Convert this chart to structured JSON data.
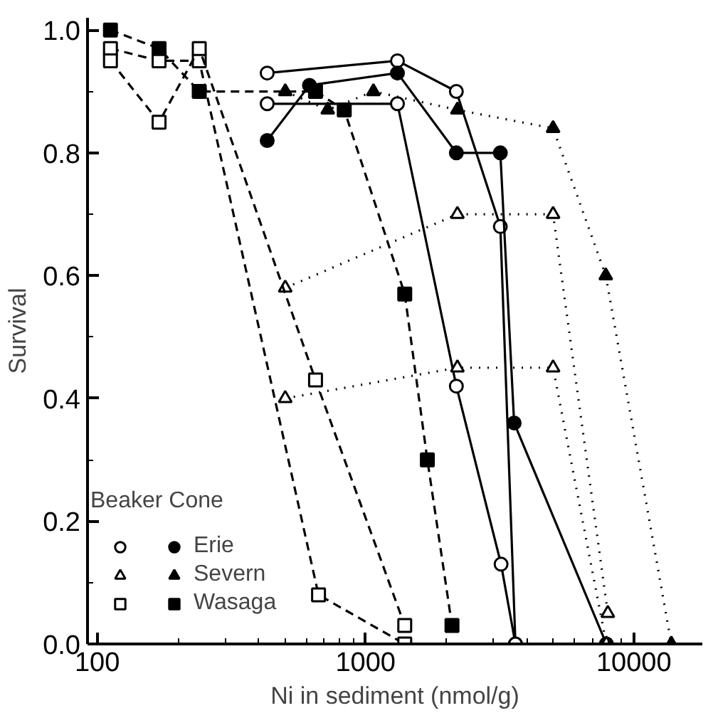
{
  "chart_data": {
    "type": "line",
    "xlabel": "Ni in sediment (nmol/g)",
    "ylabel": "Survival",
    "legend_title": "Beaker Cone",
    "log": "x",
    "xlim": [
      92,
      18000
    ],
    "ylim": [
      0,
      1.02
    ],
    "xticks": [
      100,
      1000,
      10000
    ],
    "yticks": [
      {
        "value": 0,
        "label": "0.0"
      },
      0.2,
      0.4,
      0.6,
      0.8,
      {
        "value": 1,
        "label": "1.0"
      }
    ],
    "grid": false,
    "legend": "bottom left",
    "series": [
      {
        "marker": "circle_open",
        "line_style": "solid",
        "color": "#000000",
        "x": [
          430,
          1315,
          2180,
          3180,
          3620
        ],
        "values": [
          0.93,
          0.95,
          0.9,
          0.68,
          0
        ]
      },
      {
        "marker": "circle_open",
        "line_style": "solid",
        "color": "#000000",
        "x": [
          430,
          1315,
          2180,
          3200,
          3620
        ],
        "values": [
          0.88,
          0.88,
          0.42,
          0.13,
          0
        ]
      },
      {
        "name": "Erie",
        "marker": "circle",
        "line_style": "solid",
        "color": "#000000",
        "x": [
          430,
          618,
          1315,
          2180,
          3180,
          3580,
          7900
        ],
        "values": [
          0.82,
          0.91,
          0.93,
          0.8,
          0.8,
          0.36,
          0
        ]
      },
      {
        "marker": "triangle_open",
        "line_style": "dotted",
        "color": "#000000",
        "x": [
          502,
          2200,
          5000,
          8000
        ],
        "values": [
          0.58,
          0.7,
          0.7,
          0.05
        ]
      },
      {
        "marker": "triangle_open",
        "line_style": "dotted",
        "color": "#000000",
        "x": [
          502,
          2200,
          5000,
          7900
        ],
        "values": [
          0.4,
          0.45,
          0.45,
          0
        ]
      },
      {
        "name": "Severn",
        "marker": "triangle",
        "line_style": "dotted",
        "color": "#000000",
        "x": [
          502,
          723,
          1070,
          2200,
          5000,
          7860,
          13800
        ],
        "values": [
          0.9,
          0.87,
          0.9,
          0.87,
          0.84,
          0.6,
          0
        ]
      },
      {
        "marker": "square_open",
        "line_style": "dashed",
        "color": "#000000",
        "x": [
          112,
          170,
          240,
          668,
          1400
        ],
        "values": [
          0.97,
          0.95,
          0.95,
          0.08,
          0
        ]
      },
      {
        "marker": "square_open",
        "line_style": "dashed",
        "color": "#000000",
        "x": [
          112,
          170,
          240,
          651,
          1400
        ],
        "values": [
          0.95,
          0.85,
          0.97,
          0.43,
          0.03
        ]
      },
      {
        "name": "Wasaga",
        "marker": "square",
        "line_style": "dashed",
        "color": "#000000",
        "x": [
          112,
          170,
          240,
          651,
          833,
          1400,
          1700,
          2100
        ],
        "values": [
          1.0,
          0.97,
          0.9,
          0.9,
          0.87,
          0.57,
          0.3,
          0.03
        ]
      }
    ]
  }
}
